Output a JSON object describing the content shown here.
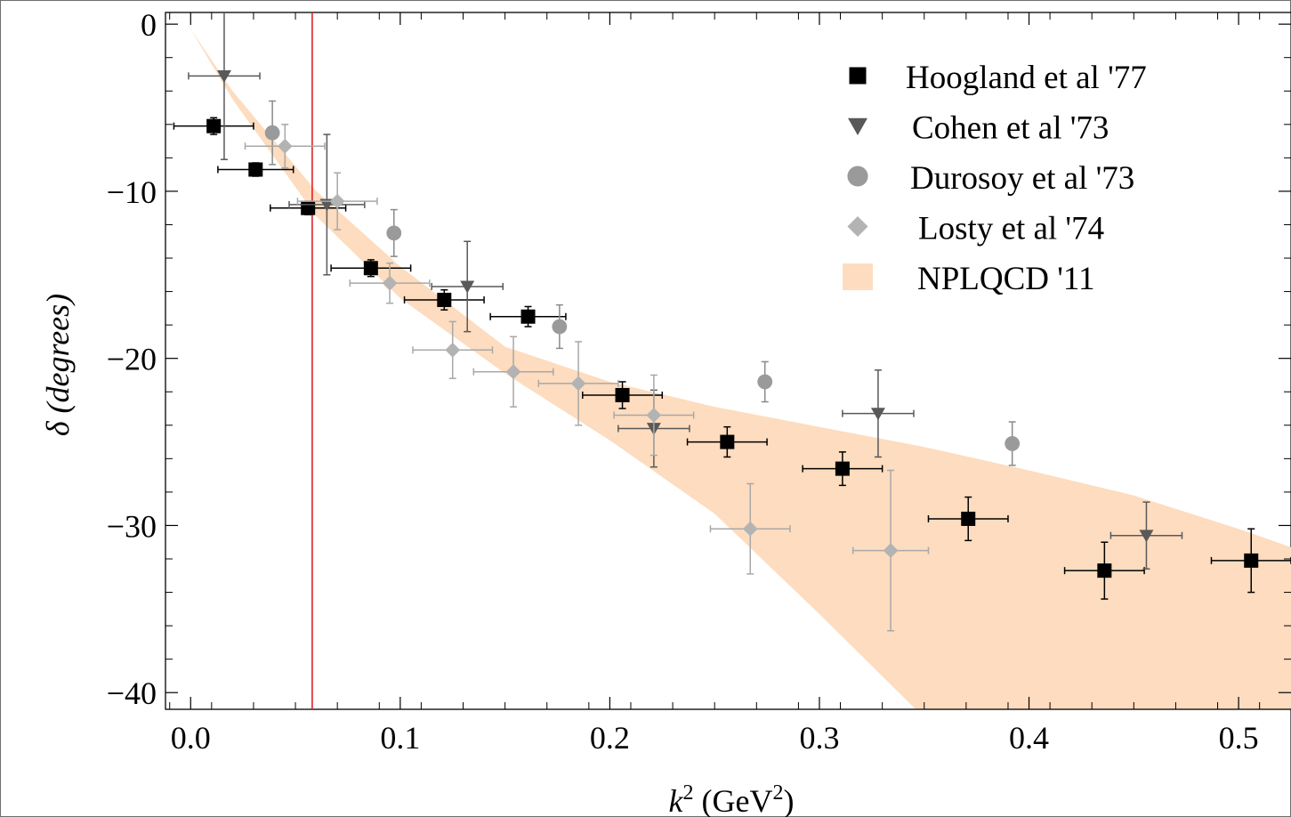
{
  "chart_data": {
    "type": "scatter",
    "xlabel": "k",
    "xlabel_sup": "2",
    "xlabel_unit": " (GeV",
    "xlabel_unit_sup": "2",
    "xlabel_unit_close": ")",
    "ylabel": "δ (degrees)",
    "xlim": [
      -0.012,
      0.525
    ],
    "ylim": [
      -41,
      0.7
    ],
    "x_ticks": [
      0.0,
      0.1,
      0.2,
      0.3,
      0.4,
      0.5
    ],
    "x_tick_labels": [
      "0.0",
      "0.1",
      "0.2",
      "0.3",
      "0.4",
      "0.5"
    ],
    "y_ticks": [
      0,
      -10,
      -20,
      -30,
      -40
    ],
    "y_tick_labels": [
      "0",
      "−10",
      "−20",
      "−30",
      "−40"
    ],
    "vertical_line": {
      "x": 0.058,
      "color": "#e0202a"
    },
    "band": {
      "name": "NPLQCD '11",
      "color": "#fddcbf",
      "x": [
        0.0,
        0.02,
        0.06,
        0.1,
        0.15,
        0.2,
        0.25,
        0.3,
        0.35,
        0.4,
        0.45,
        0.5,
        0.525
      ],
      "upper": [
        -0.3,
        -4.0,
        -10.0,
        -14.5,
        -19.3,
        -21.4,
        -22.9,
        -24.1,
        -25.3,
        -26.7,
        -28.2,
        -30.2,
        -31.3
      ],
      "lower": [
        -0.3,
        -4.5,
        -11.5,
        -16.4,
        -20.9,
        -24.9,
        -29.3,
        -35.3,
        -41.5,
        -44.5,
        -44.5,
        -44.5,
        -44.5
      ]
    },
    "series": [
      {
        "name": "Hoogland et al '77",
        "marker": "square",
        "color": "#000000",
        "errcolor": "#000000",
        "points": [
          {
            "x": 0.011,
            "y": -6.1,
            "xerr": 0.019,
            "yerr": 0.5
          },
          {
            "x": 0.031,
            "y": -8.7,
            "xerr": 0.018,
            "yerr": 0.4
          },
          {
            "x": 0.056,
            "y": -11.0,
            "xerr": 0.018,
            "yerr": 0.4
          },
          {
            "x": 0.086,
            "y": -14.6,
            "xerr": 0.019,
            "yerr": 0.5
          },
          {
            "x": 0.121,
            "y": -16.5,
            "xerr": 0.019,
            "yerr": 0.6
          },
          {
            "x": 0.161,
            "y": -17.5,
            "xerr": 0.018,
            "yerr": 0.6
          },
          {
            "x": 0.206,
            "y": -22.2,
            "xerr": 0.019,
            "yerr": 0.8
          },
          {
            "x": 0.256,
            "y": -25.0,
            "xerr": 0.019,
            "yerr": 0.9
          },
          {
            "x": 0.311,
            "y": -26.6,
            "xerr": 0.019,
            "yerr": 1.0
          },
          {
            "x": 0.371,
            "y": -29.6,
            "xerr": 0.019,
            "yerr": 1.3
          },
          {
            "x": 0.436,
            "y": -32.7,
            "xerr": 0.019,
            "yerr": 1.7
          },
          {
            "x": 0.506,
            "y": -32.1,
            "xerr": 0.019,
            "yerr": 1.9
          }
        ]
      },
      {
        "name": "Cohen et al '73",
        "marker": "triangle-down",
        "color": "#595959",
        "errcolor": "#595959",
        "points": [
          {
            "x": 0.016,
            "y": -3.1,
            "xerr": 0.017,
            "yerr": 5.0
          },
          {
            "x": 0.065,
            "y": -10.8,
            "xerr": 0.018,
            "yerr": 4.2
          },
          {
            "x": 0.132,
            "y": -15.7,
            "xerr": 0.017,
            "yerr": 2.7
          },
          {
            "x": 0.221,
            "y": -24.2,
            "xerr": 0.017,
            "yerr": 2.3
          },
          {
            "x": 0.328,
            "y": -23.3,
            "xerr": 0.017,
            "yerr": 2.6
          },
          {
            "x": 0.456,
            "y": -30.6,
            "xerr": 0.017,
            "yerr": 2.0
          }
        ]
      },
      {
        "name": "Durosoy et al '73",
        "marker": "circle",
        "color": "#9a9a9a",
        "errcolor": "#8a8a8a",
        "points": [
          {
            "x": 0.039,
            "y": -6.5,
            "xerr": 0,
            "yerr": 1.9
          },
          {
            "x": 0.097,
            "y": -12.5,
            "xerr": 0,
            "yerr": 1.4
          },
          {
            "x": 0.176,
            "y": -18.1,
            "xerr": 0,
            "yerr": 1.3
          },
          {
            "x": 0.274,
            "y": -21.4,
            "xerr": 0,
            "yerr": 1.2
          },
          {
            "x": 0.392,
            "y": -25.1,
            "xerr": 0,
            "yerr": 1.3
          }
        ]
      },
      {
        "name": "Losty et al '74",
        "marker": "diamond",
        "color": "#b3b3b3",
        "errcolor": "#a8a8a8",
        "points": [
          {
            "x": 0.045,
            "y": -7.3,
            "xerr": 0.019,
            "yerr": 1.3
          },
          {
            "x": 0.07,
            "y": -10.6,
            "xerr": 0.019,
            "yerr": 1.7
          },
          {
            "x": 0.095,
            "y": -15.5,
            "xerr": 0.019,
            "yerr": 1.2
          },
          {
            "x": 0.125,
            "y": -19.5,
            "xerr": 0.019,
            "yerr": 1.7
          },
          {
            "x": 0.154,
            "y": -20.8,
            "xerr": 0.019,
            "yerr": 2.1
          },
          {
            "x": 0.185,
            "y": -21.5,
            "xerr": 0.019,
            "yerr": 2.5
          },
          {
            "x": 0.221,
            "y": -23.4,
            "xerr": 0.019,
            "yerr": 2.4
          },
          {
            "x": 0.267,
            "y": -30.2,
            "xerr": 0.019,
            "yerr": 2.7
          },
          {
            "x": 0.334,
            "y": -31.5,
            "xerr": 0.018,
            "yerr": 4.8
          }
        ]
      }
    ],
    "legend": {
      "placement": "top-right",
      "entries": [
        {
          "label": "Hoogland et al '77",
          "marker": "square",
          "color": "#000000"
        },
        {
          "label": "Cohen et al '73",
          "marker": "triangle-down",
          "color": "#595959"
        },
        {
          "label": "Durosoy et al '73",
          "marker": "circle",
          "color": "#9a9a9a"
        },
        {
          "label": "Losty et al '74",
          "marker": "diamond",
          "color": "#b3b3b3"
        },
        {
          "label": "NPLQCD '11",
          "marker": "swatch",
          "color": "#fddcbf"
        }
      ]
    }
  }
}
